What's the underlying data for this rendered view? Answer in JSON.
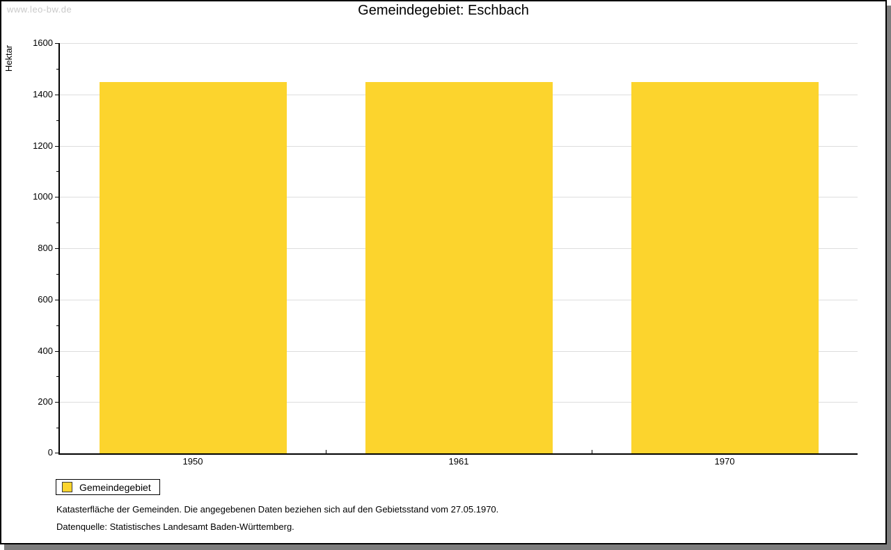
{
  "watermark": "www.leo-bw.de",
  "title": "Gemeindegebiet: Eschbach",
  "legend": {
    "label": "Gemeindegebiet"
  },
  "footnotes": {
    "line1": "Katasterfläche der Gemeinden. Die angegebenen Daten beziehen sich auf den Gebietsstand vom 27.05.1970.",
    "line2": "Datenquelle: Statistisches Landesamt Baden-Württemberg."
  },
  "colors": {
    "bar": "#fcd42d",
    "gridline": "#dddddd",
    "axis": "#000000",
    "watermark": "#c9c9c9",
    "shadow": "#7d7d7d"
  },
  "chart_data": {
    "type": "bar",
    "title": "Gemeindegebiet: Eschbach",
    "categories": [
      "1950",
      "1961",
      "1970"
    ],
    "series": [
      {
        "name": "Gemeindegebiet",
        "values": [
          1449,
          1449,
          1449
        ],
        "color": "#fcd42d"
      }
    ],
    "xlabel": "",
    "ylabel": "Hektar",
    "ylim": [
      0,
      1600
    ],
    "y_major_step": 200,
    "y_minor_step": 100,
    "grid": true,
    "legend_position": "bottom-left"
  }
}
